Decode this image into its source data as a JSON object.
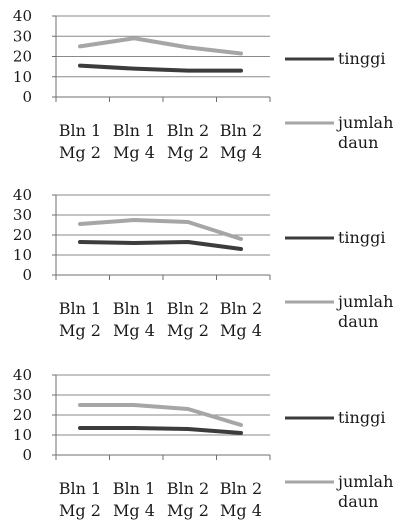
{
  "colors": {
    "tinggi": "#3c3c3c",
    "jumlah_daun": "#a6a6a6",
    "grid": "#8a8a8a",
    "axis": "#6f6f6f"
  },
  "chart_data": [
    {
      "type": "line",
      "title": "",
      "xlabel": "",
      "ylabel": "",
      "ylim": [
        0,
        40
      ],
      "yticks": [
        "0",
        "10",
        "20",
        "30",
        "40"
      ],
      "grid": true,
      "legend": "right",
      "categories": [
        [
          "Bln 1",
          "Mg 2"
        ],
        [
          "Bln 1",
          "Mg 4"
        ],
        [
          "Bln 2",
          "Mg 2"
        ],
        [
          "Bln 2",
          "Mg 4"
        ]
      ],
      "series": [
        {
          "name": "tinggi",
          "legend_lines": [
            "tinggi"
          ],
          "values": [
            15.5,
            14,
            13,
            13
          ]
        },
        {
          "name": "jumlah daun",
          "legend_lines": [
            "jumlah",
            "daun"
          ],
          "values": [
            25,
            29,
            24.5,
            21.5
          ]
        }
      ]
    },
    {
      "type": "line",
      "title": "",
      "xlabel": "",
      "ylabel": "",
      "ylim": [
        0,
        40
      ],
      "yticks": [
        "0",
        "10",
        "20",
        "30",
        "40"
      ],
      "grid": true,
      "legend": "right",
      "categories": [
        [
          "Bln 1",
          "Mg 2"
        ],
        [
          "Bln 1",
          "Mg 4"
        ],
        [
          "Bln 2",
          "Mg 2"
        ],
        [
          "Bln 2",
          "Mg 4"
        ]
      ],
      "series": [
        {
          "name": "tinggi",
          "legend_lines": [
            "tinggi"
          ],
          "values": [
            16.5,
            16,
            16.5,
            13
          ]
        },
        {
          "name": "jumlah daun",
          "legend_lines": [
            "jumlah",
            "daun"
          ],
          "values": [
            25.5,
            27.5,
            26.5,
            18
          ]
        }
      ]
    },
    {
      "type": "line",
      "title": "",
      "xlabel": "",
      "ylabel": "",
      "ylim": [
        0,
        40
      ],
      "yticks": [
        "0",
        "10",
        "20",
        "30",
        "40"
      ],
      "grid": true,
      "legend": "right",
      "categories": [
        [
          "Bln 1",
          "Mg 2"
        ],
        [
          "Bln 1",
          "Mg 4"
        ],
        [
          "Bln 2",
          "Mg 2"
        ],
        [
          "Bln 2",
          "Mg 4"
        ]
      ],
      "series": [
        {
          "name": "tinggi",
          "legend_lines": [
            "tinggi"
          ],
          "values": [
            13.5,
            13.5,
            13,
            11
          ]
        },
        {
          "name": "jumlah daun",
          "legend_lines": [
            "jumlah",
            "daun"
          ],
          "values": [
            25,
            25,
            23,
            15
          ]
        }
      ]
    }
  ]
}
